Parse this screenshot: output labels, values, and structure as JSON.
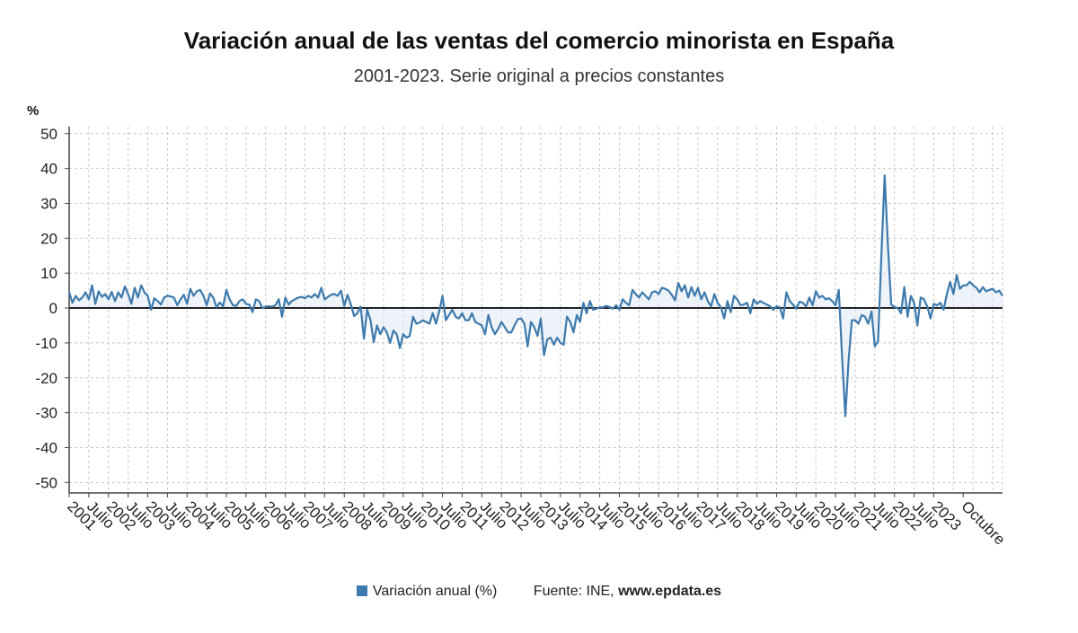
{
  "chart_data": {
    "type": "line",
    "title": "Variación anual de las ventas del comercio minorista en España",
    "subtitle": "2001-2023. Serie original a precios constantes",
    "ylabel": "%",
    "ylim": [
      -53,
      52
    ],
    "yticks": [
      50,
      40,
      30,
      20,
      10,
      0,
      -10,
      -20,
      -30,
      -40,
      -50
    ],
    "grid": true,
    "x_start": "2001-01",
    "x_end": "2023-10",
    "x_tick_labels": [
      {
        "label": "2001",
        "month": 0
      },
      {
        "label": "Julio",
        "month": 6
      },
      {
        "label": "2002",
        "month": 12
      },
      {
        "label": "Julio",
        "month": 18
      },
      {
        "label": "2003",
        "month": 24
      },
      {
        "label": "Julio",
        "month": 30
      },
      {
        "label": "2004",
        "month": 36
      },
      {
        "label": "Julio",
        "month": 42
      },
      {
        "label": "2005",
        "month": 48
      },
      {
        "label": "Julio",
        "month": 54
      },
      {
        "label": "2006",
        "month": 60
      },
      {
        "label": "Julio",
        "month": 66
      },
      {
        "label": "2007",
        "month": 72
      },
      {
        "label": "Julio",
        "month": 78
      },
      {
        "label": "2008",
        "month": 84
      },
      {
        "label": "Julio",
        "month": 90
      },
      {
        "label": "2009",
        "month": 96
      },
      {
        "label": "Julio",
        "month": 102
      },
      {
        "label": "2010",
        "month": 108
      },
      {
        "label": "Julio",
        "month": 114
      },
      {
        "label": "2011",
        "month": 120
      },
      {
        "label": "Julio",
        "month": 126
      },
      {
        "label": "2012",
        "month": 132
      },
      {
        "label": "Julio",
        "month": 138
      },
      {
        "label": "2013",
        "month": 144
      },
      {
        "label": "Julio",
        "month": 150
      },
      {
        "label": "2014",
        "month": 156
      },
      {
        "label": "Julio",
        "month": 162
      },
      {
        "label": "2015",
        "month": 168
      },
      {
        "label": "Julio",
        "month": 174
      },
      {
        "label": "2016",
        "month": 180
      },
      {
        "label": "Julio",
        "month": 186
      },
      {
        "label": "2017",
        "month": 192
      },
      {
        "label": "Julio",
        "month": 198
      },
      {
        "label": "2018",
        "month": 204
      },
      {
        "label": "Julio",
        "month": 210
      },
      {
        "label": "2019",
        "month": 216
      },
      {
        "label": "Julio",
        "month": 222
      },
      {
        "label": "2020",
        "month": 228
      },
      {
        "label": "Julio",
        "month": 234
      },
      {
        "label": "2021",
        "month": 240
      },
      {
        "label": "Julio",
        "month": 246
      },
      {
        "label": "2022",
        "month": 252
      },
      {
        "label": "Julio",
        "month": 258
      },
      {
        "label": "2023",
        "month": 264
      },
      {
        "label": "Octubre",
        "month": 273
      }
    ],
    "series": [
      {
        "name": "Variación anual (%)",
        "color": "#3e7aad",
        "values": [
          4.5,
          1.5,
          3.5,
          2.2,
          3.0,
          4.5,
          2.5,
          6.5,
          1.2,
          4.8,
          3.2,
          4.0,
          2.5,
          4.6,
          2.0,
          4.5,
          3.0,
          6.2,
          4.0,
          1.2,
          5.8,
          3.0,
          6.5,
          4.5,
          3.5,
          -0.5,
          2.8,
          2.0,
          1.0,
          3.0,
          3.5,
          3.3,
          3.0,
          0.8,
          2.5,
          3.8,
          1.2,
          5.5,
          3.5,
          4.8,
          5.2,
          3.5,
          0.8,
          4.2,
          3.0,
          0.2,
          1.6,
          0.5,
          5.2,
          2.5,
          0.8,
          0.6,
          2.0,
          2.5,
          1.2,
          1.0,
          -1.2,
          2.5,
          2.0,
          0.0,
          0.4,
          0.5,
          0.4,
          0.8,
          2.5,
          -2.5,
          3.0,
          1.0,
          2.0,
          2.5,
          3.0,
          3.2,
          2.8,
          3.5,
          3.0,
          4.0,
          3.0,
          5.8,
          2.5,
          3.2,
          3.8,
          4.0,
          3.5,
          5.0,
          0.6,
          3.8,
          1.0,
          -2.3,
          -1.5,
          0.4,
          -8.8,
          -0.5,
          -3.5,
          -9.8,
          -5.0,
          -7.5,
          -5.5,
          -7.0,
          -10.0,
          -6.5,
          -7.5,
          -11.5,
          -7.5,
          -8.5,
          -8.0,
          -2.5,
          -4.5,
          -4.2,
          -3.5,
          -4.0,
          -4.5,
          -1.5,
          -4.5,
          -1.0,
          3.5,
          -3.5,
          -2.0,
          -0.5,
          -2.5,
          -3.0,
          -1.5,
          -3.5,
          -3.5,
          -1.5,
          -4.0,
          -4.5,
          -5.0,
          -7.5,
          -2.0,
          -5.5,
          -7.5,
          -6.0,
          -4.0,
          -5.5,
          -7.0,
          -7.0,
          -5.0,
          -3.2,
          -3.0,
          -4.5,
          -11.0,
          -4.0,
          -5.5,
          -8.0,
          -3.0,
          -13.5,
          -9.0,
          -8.5,
          -10.5,
          -8.5,
          -10.0,
          -10.5,
          -2.5,
          -4.0,
          -7.0,
          -2.0,
          -4.0,
          1.5,
          -1.5,
          2.0,
          -0.5,
          -0.2,
          0.2,
          0.2,
          0.6,
          0.3,
          -0.2,
          0.8,
          -0.5,
          2.5,
          1.5,
          0.8,
          5.2,
          4.0,
          3.0,
          4.5,
          3.5,
          2.5,
          4.5,
          4.8,
          4.0,
          5.8,
          5.5,
          5.0,
          3.8,
          2.2,
          7.2,
          4.8,
          6.5,
          3.0,
          6.0,
          3.5,
          5.8,
          2.5,
          4.5,
          2.0,
          0.5,
          4.0,
          1.5,
          0.2,
          -3.0,
          2.0,
          -1.2,
          3.5,
          2.5,
          0.8,
          1.0,
          1.5,
          -1.5,
          2.5,
          1.2,
          2.0,
          1.5,
          1.0,
          0.5,
          -0.5,
          0.5,
          0.2,
          -3.0,
          4.5,
          2.0,
          1.0,
          -0.2,
          1.8,
          1.5,
          0.5,
          3.0,
          0.8,
          4.8,
          3.0,
          3.5,
          2.5,
          2.8,
          2.0,
          0.8,
          5.2,
          -14.0,
          -31.0,
          -15.0,
          -3.5,
          -3.5,
          -4.5,
          -2.0,
          -2.5,
          -4.5,
          -1.0,
          -11.0,
          -9.5,
          15.0,
          38.0,
          18.0,
          1.0,
          0.3,
          0.0,
          -1.5,
          6.0,
          -2.5,
          3.5,
          1.5,
          -5.0,
          3.0,
          2.5,
          0.5,
          -3.0,
          1.2,
          0.8,
          1.5,
          -0.5,
          4.0,
          7.5,
          4.0,
          9.5,
          5.5,
          6.5,
          6.5,
          7.5,
          6.5,
          5.8,
          4.5,
          6.0,
          4.8,
          5.2,
          5.5,
          4.5,
          5.0,
          3.5
        ]
      }
    ]
  },
  "legend": {
    "series_label": "Variación anual (%)",
    "source_label": "Fuente: INE,",
    "source_site": "www.epdata.es"
  }
}
